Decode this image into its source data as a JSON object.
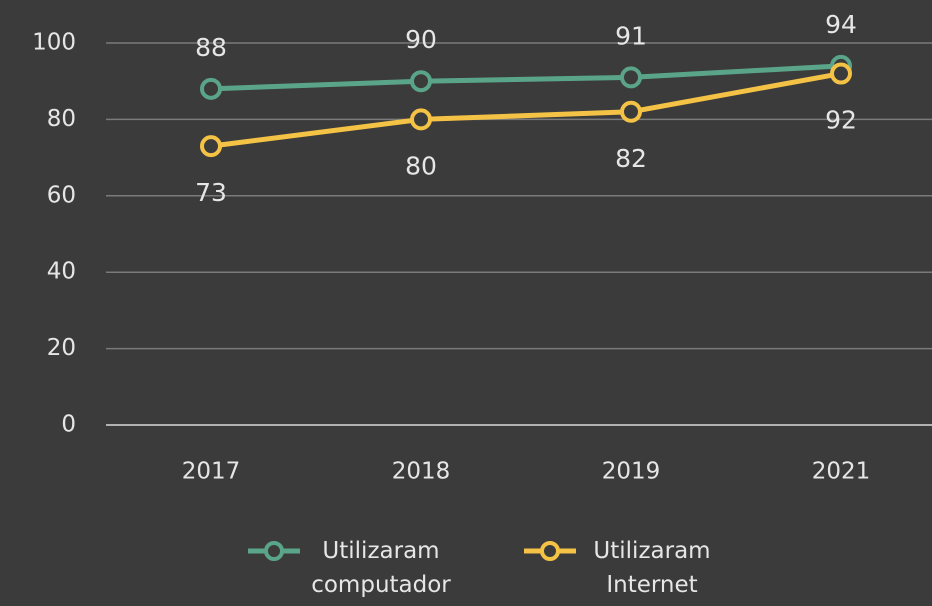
{
  "chart_data": {
    "type": "line",
    "categories": [
      "2017",
      "2018",
      "2019",
      "2021"
    ],
    "series": [
      {
        "name": "Utilizaram computador",
        "color": "#5aa58a",
        "values": [
          88,
          90,
          91,
          94
        ]
      },
      {
        "name": "Utilizaram Internet",
        "color": "#f4c245",
        "values": [
          73,
          80,
          82,
          92
        ]
      }
    ],
    "ylim": [
      0,
      100
    ],
    "yticks": [
      0,
      20,
      40,
      60,
      80,
      100
    ],
    "grid": true,
    "legend": "bottom"
  }
}
